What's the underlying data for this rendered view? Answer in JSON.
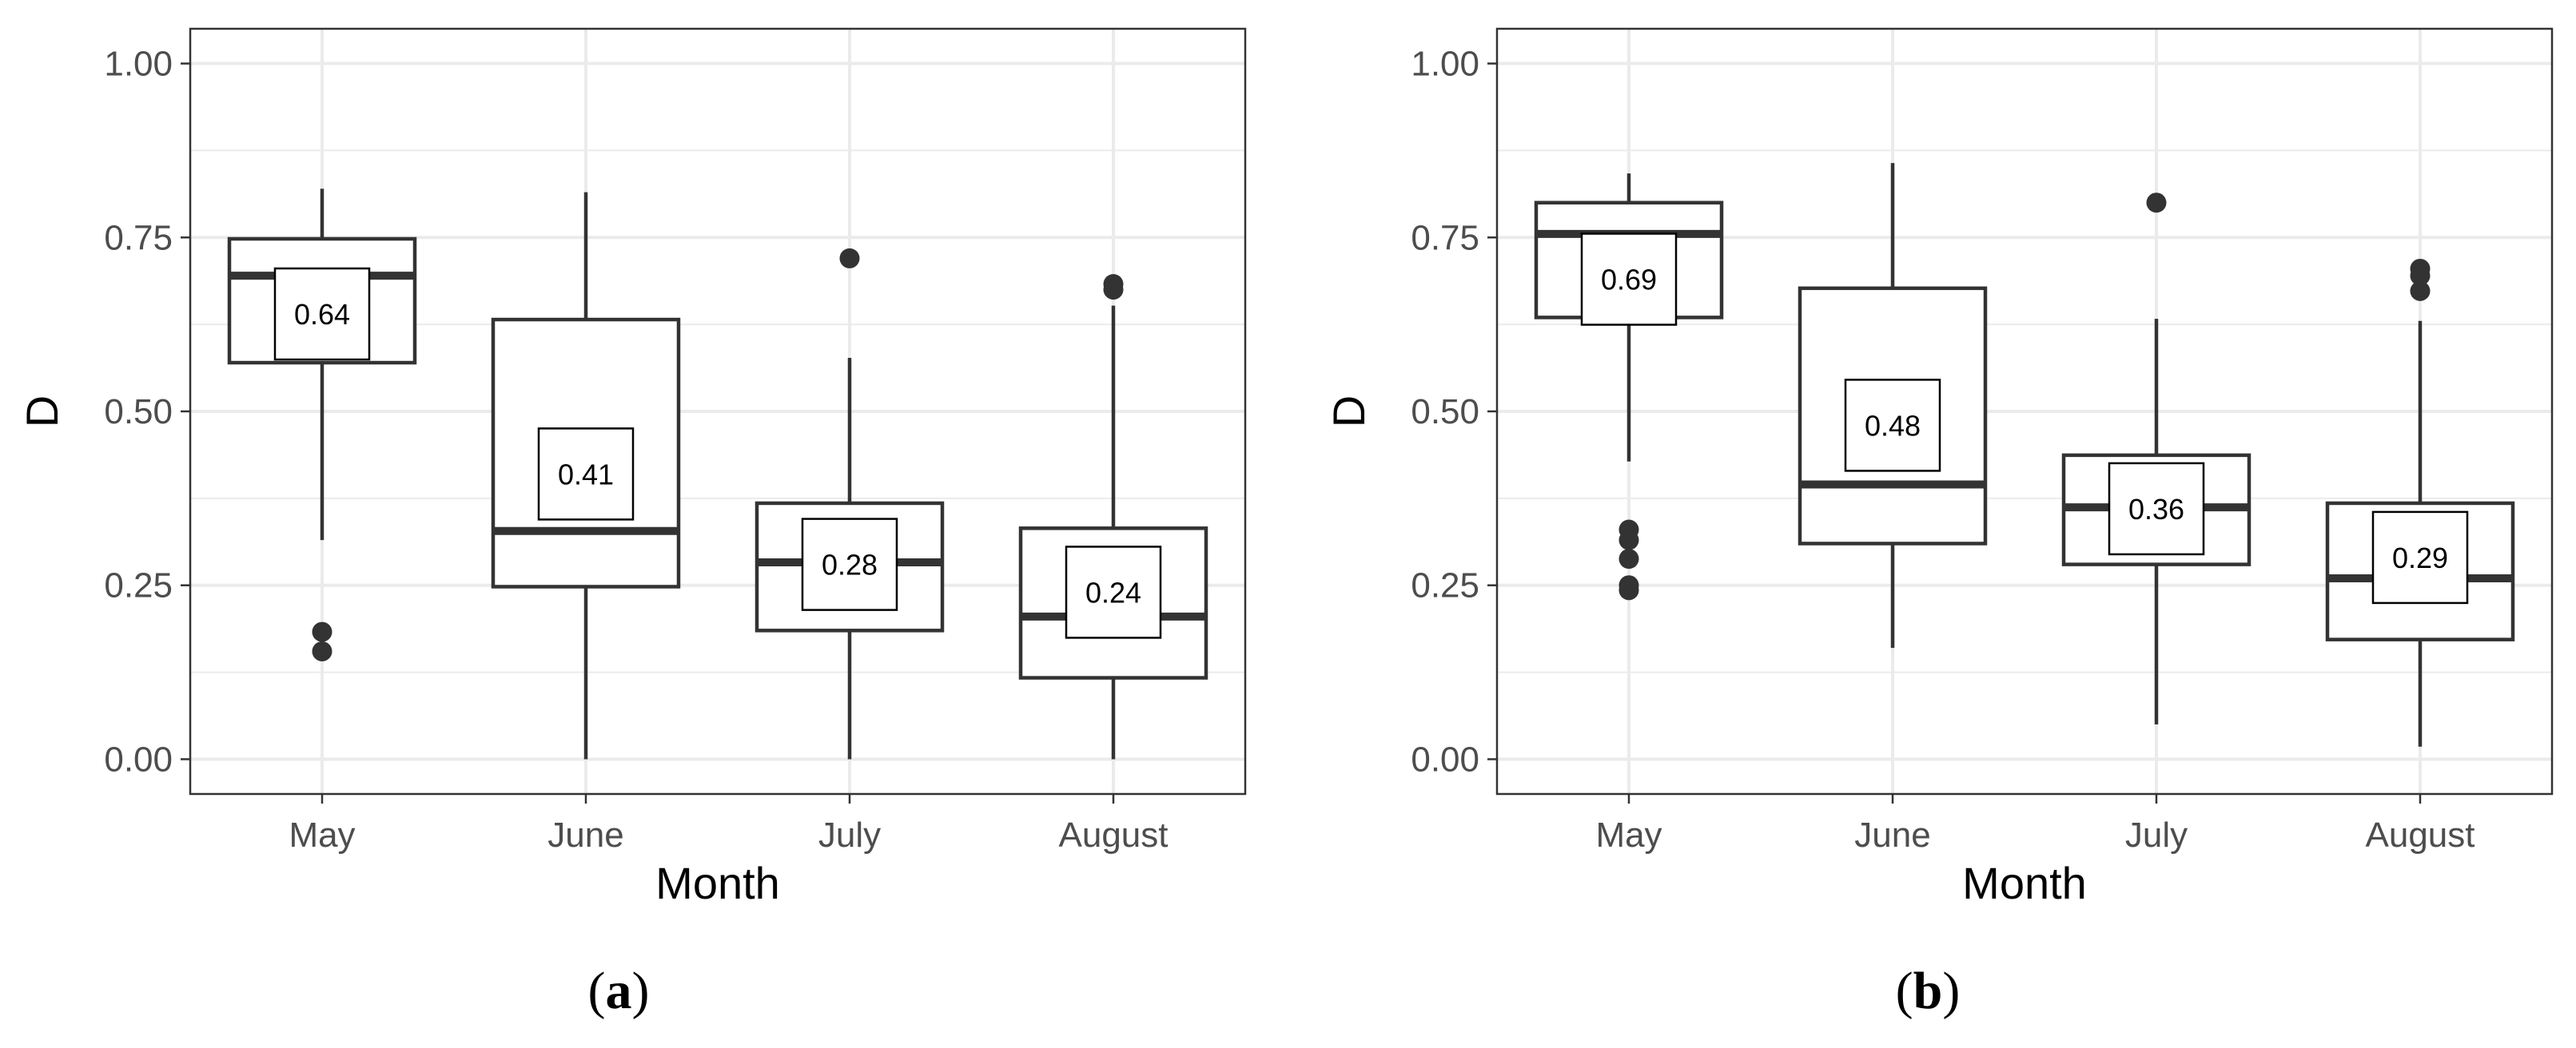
{
  "chart_data": [
    {
      "type": "box",
      "panel_label": "a",
      "xlabel": "Month",
      "ylabel": "D",
      "categories": [
        "May",
        "June",
        "July",
        "August"
      ],
      "ylim": [
        -0.05,
        1.05
      ],
      "yticks": [
        0.0,
        0.25,
        0.5,
        0.75,
        1.0
      ],
      "ytick_labels": [
        "0.00",
        "0.25",
        "0.50",
        "0.75",
        "1.00"
      ],
      "grid": true,
      "boxes": [
        {
          "category": "May",
          "whisker_low": 0.315,
          "q1": 0.57,
          "median": 0.695,
          "q3": 0.748,
          "whisker_high": 0.82,
          "outliers": [
            0.183,
            0.155
          ],
          "mean": 0.64,
          "mean_label": "0.64"
        },
        {
          "category": "June",
          "whisker_low": 0.0,
          "q1": 0.248,
          "median": 0.328,
          "q3": 0.632,
          "whisker_high": 0.815,
          "outliers": [],
          "mean": 0.41,
          "mean_label": "0.41"
        },
        {
          "category": "July",
          "whisker_low": 0.0,
          "q1": 0.185,
          "median": 0.283,
          "q3": 0.368,
          "whisker_high": 0.577,
          "outliers": [
            0.72
          ],
          "mean": 0.28,
          "mean_label": "0.28"
        },
        {
          "category": "August",
          "whisker_low": 0.0,
          "q1": 0.117,
          "median": 0.205,
          "q3": 0.332,
          "whisker_high": 0.652,
          "outliers": [
            0.683,
            0.675
          ],
          "mean": 0.24,
          "mean_label": "0.24"
        }
      ]
    },
    {
      "type": "box",
      "panel_label": "b",
      "xlabel": "Month",
      "ylabel": "D",
      "categories": [
        "May",
        "June",
        "July",
        "August"
      ],
      "ylim": [
        -0.05,
        1.05
      ],
      "yticks": [
        0.0,
        0.25,
        0.5,
        0.75,
        1.0
      ],
      "ytick_labels": [
        "0.00",
        "0.25",
        "0.50",
        "0.75",
        "1.00"
      ],
      "grid": true,
      "boxes": [
        {
          "category": "May",
          "whisker_low": 0.428,
          "q1": 0.635,
          "median": 0.755,
          "q3": 0.8,
          "whisker_high": 0.842,
          "outliers": [
            0.33,
            0.315,
            0.288,
            0.25,
            0.243
          ],
          "mean": 0.69,
          "mean_label": "0.69"
        },
        {
          "category": "June",
          "whisker_low": 0.16,
          "q1": 0.31,
          "median": 0.395,
          "q3": 0.677,
          "whisker_high": 0.857,
          "outliers": [],
          "mean": 0.48,
          "mean_label": "0.48"
        },
        {
          "category": "July",
          "whisker_low": 0.05,
          "q1": 0.28,
          "median": 0.362,
          "q3": 0.437,
          "whisker_high": 0.633,
          "outliers": [
            0.8
          ],
          "mean": 0.36,
          "mean_label": "0.36"
        },
        {
          "category": "August",
          "whisker_low": 0.018,
          "q1": 0.172,
          "median": 0.26,
          "q3": 0.368,
          "whisker_high": 0.63,
          "outliers": [
            0.705,
            0.695,
            0.673
          ],
          "mean": 0.29,
          "mean_label": "0.29"
        }
      ]
    }
  ]
}
